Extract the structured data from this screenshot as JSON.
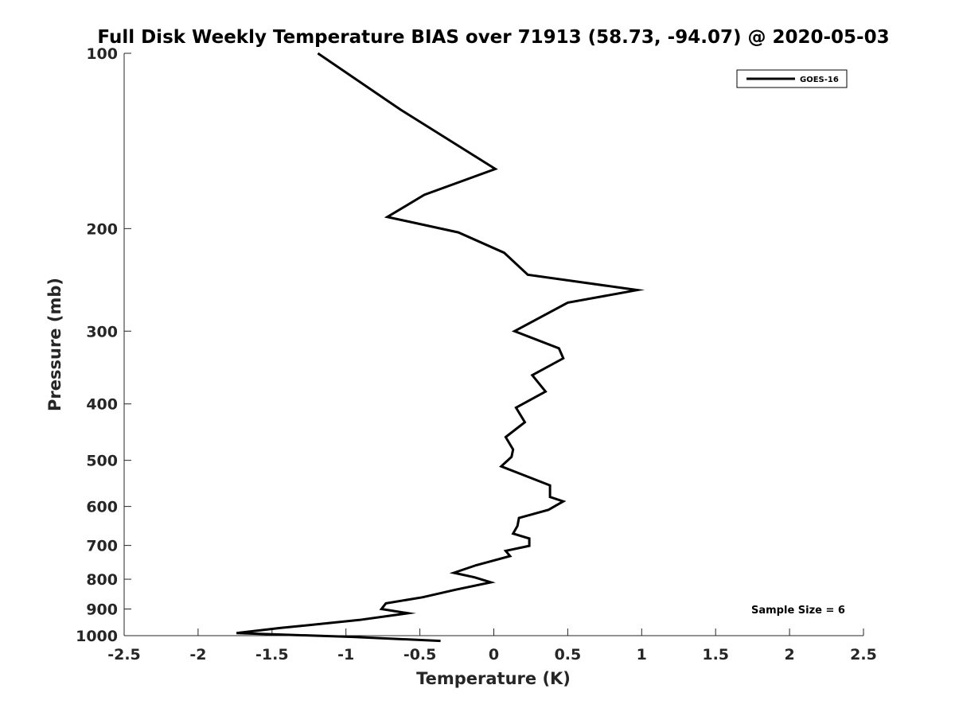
{
  "chart_data": {
    "type": "line",
    "title": "Full Disk Weekly Temperature BIAS over 71913 (58.73, -94.07) @ 2020-05-03",
    "xlabel": "Temperature (K)",
    "ylabel": "Pressure (mb)",
    "xlim": [
      -2.5,
      2.5
    ],
    "ylim": [
      100,
      1000
    ],
    "y_scale": "log",
    "y_reversed": true,
    "grid": false,
    "legend_position": "top-right",
    "x_ticks": [
      "-2.5",
      "-2",
      "-1.5",
      "-1",
      "-0.5",
      "0",
      "0.5",
      "1",
      "1.5",
      "2",
      "2.5"
    ],
    "y_ticks": [
      "100",
      "200",
      "300",
      "400",
      "500",
      "600",
      "700",
      "800",
      "900",
      "1000"
    ],
    "annotation": "Sample Size = 6",
    "series": [
      {
        "name": "GOES-16",
        "color": "#000000",
        "x": [
          -1.19,
          -0.63,
          0.01,
          -0.47,
          -0.72,
          -0.24,
          0.07,
          0.23,
          0.97,
          0.5,
          0.14,
          0.44,
          0.47,
          0.26,
          0.35,
          0.15,
          0.21,
          0.08,
          0.13,
          0.12,
          0.05,
          0.38,
          0.38,
          0.47,
          0.37,
          0.17,
          0.16,
          0.13,
          0.24,
          0.24,
          0.08,
          0.11,
          -0.12,
          -0.27,
          -0.13,
          -0.02,
          -0.26,
          -0.48,
          -0.73,
          -0.76,
          -0.58,
          -0.91,
          -1.44,
          -1.74,
          -0.95,
          -0.36
        ],
        "y": [
          100,
          125,
          158,
          175,
          191,
          203,
          220,
          240,
          255,
          268,
          300,
          321,
          334,
          357,
          381,
          406,
          430,
          456,
          479,
          493,
          512,
          552,
          578,
          588,
          608,
          628,
          648,
          668,
          681,
          701,
          715,
          730,
          757,
          780,
          794,
          810,
          834,
          859,
          880,
          900,
          915,
          940,
          970,
          990,
          1005,
          1021
        ]
      }
    ]
  }
}
